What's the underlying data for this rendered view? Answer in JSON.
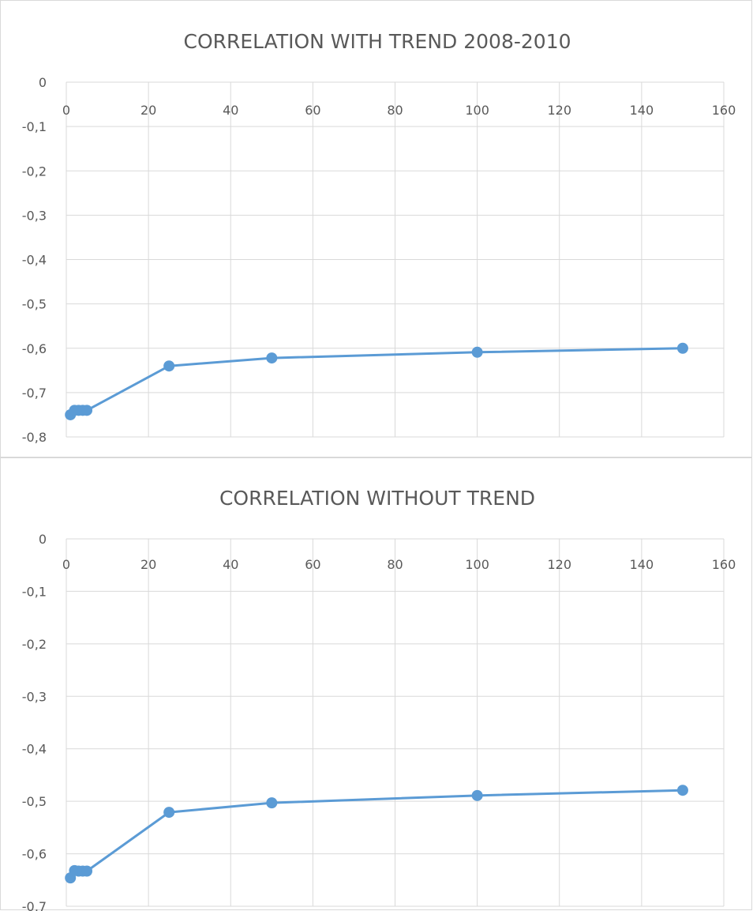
{
  "chart_data": [
    {
      "type": "scatter",
      "title": "CORRELATION WITH TREND 2008-2010",
      "xlabel": "",
      "ylabel": "",
      "xlim": [
        0,
        160
      ],
      "ylim": [
        -0.8,
        0
      ],
      "x_ticks": [
        "0",
        "20",
        "40",
        "60",
        "80",
        "100",
        "120",
        "140",
        "160"
      ],
      "y_ticks": [
        "0",
        "-0,1",
        "-0,2",
        "-0,3",
        "-0,4",
        "-0,5",
        "-0,6",
        "-0,7",
        "-0,8"
      ],
      "grid": true,
      "legend": "none",
      "color": "#5b9bd5",
      "x": [
        1,
        2,
        3,
        4,
        5,
        25,
        50,
        100,
        150
      ],
      "values": [
        -0.75,
        -0.74,
        -0.74,
        -0.74,
        -0.74,
        -0.64,
        -0.622,
        -0.609,
        -0.6
      ]
    },
    {
      "type": "scatter",
      "title": "CORRELATION WITHOUT TREND",
      "xlabel": "",
      "ylabel": "",
      "xlim": [
        0,
        160
      ],
      "ylim": [
        -0.7,
        0
      ],
      "x_ticks": [
        "0",
        "20",
        "40",
        "60",
        "80",
        "100",
        "120",
        "140",
        "160"
      ],
      "y_ticks": [
        "0",
        "-0,1",
        "-0,2",
        "-0,3",
        "-0,4",
        "-0,5",
        "-0,6",
        "-0,7"
      ],
      "grid": true,
      "legend": "none",
      "color": "#5b9bd5",
      "x": [
        1,
        2,
        3,
        4,
        5,
        25,
        50,
        100,
        150
      ],
      "values": [
        -0.646,
        -0.632,
        -0.633,
        -0.633,
        -0.633,
        -0.521,
        -0.503,
        -0.489,
        -0.479
      ]
    }
  ]
}
